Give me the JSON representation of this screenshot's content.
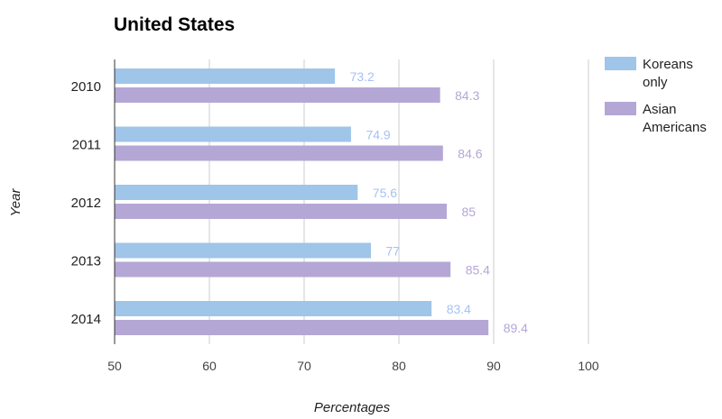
{
  "chart_data": {
    "type": "bar",
    "orientation": "horizontal",
    "title": "United States",
    "xlabel": "Percentages",
    "ylabel": "Year",
    "categories": [
      "2010",
      "2011",
      "2012",
      "2013",
      "2014"
    ],
    "series": [
      {
        "name": "Koreans only",
        "values": [
          73.2,
          74.9,
          75.6,
          77,
          83.4
        ],
        "color": "#9fc5e8",
        "label_color": "#a4c2f4"
      },
      {
        "name": "Asian Americans",
        "values": [
          84.3,
          84.6,
          85,
          85.4,
          89.4
        ],
        "color": "#b4a7d6",
        "label_color": "#b4a7d6"
      }
    ],
    "data_labels": [
      [
        "73.2",
        "74.9",
        "75.6",
        "77",
        "83.4"
      ],
      [
        "84.3",
        "84.6",
        "85",
        "85.4",
        "89.4"
      ]
    ],
    "xlim": [
      50,
      100
    ],
    "xticks": [
      50,
      60,
      70,
      80,
      90,
      100
    ],
    "xtick_labels": [
      "50",
      "60",
      "70",
      "80",
      "90",
      "100"
    ],
    "grid": true,
    "legend": {
      "placement": "right",
      "entries": [
        {
          "lines": [
            "Koreans",
            "only"
          ],
          "color": "#9fc5e8"
        },
        {
          "lines": [
            "Asian",
            "Americans"
          ],
          "color": "#b4a7d6"
        }
      ]
    }
  }
}
